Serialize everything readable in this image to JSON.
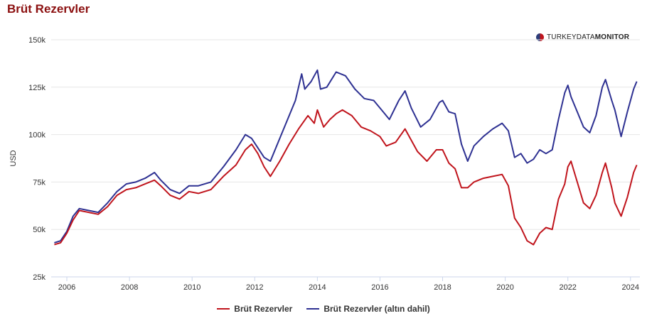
{
  "title": "Brüt Rezervler",
  "brand": {
    "part1": "TURKEYDATA",
    "part2": "MONITOR"
  },
  "chart_data": {
    "type": "line",
    "title": "Brüt Rezervler",
    "xlabel": "",
    "ylabel": "USD",
    "ylim": [
      25000,
      150000
    ],
    "xlim": [
      2005.5,
      2024.3
    ],
    "y_ticks": [
      25000,
      50000,
      75000,
      100000,
      125000,
      150000
    ],
    "y_tick_labels": [
      "25k",
      "50k",
      "75k",
      "100k",
      "125k",
      "150k"
    ],
    "x_ticks": [
      2006,
      2008,
      2010,
      2012,
      2014,
      2016,
      2018,
      2020,
      2022,
      2024
    ],
    "x_tick_labels": [
      "2006",
      "2008",
      "2010",
      "2012",
      "2014",
      "2016",
      "2018",
      "2020",
      "2022",
      "2024"
    ],
    "grid": true,
    "legend_position": "bottom",
    "series": [
      {
        "name": "Brüt Rezervler",
        "color": "#c0141c",
        "points": [
          [
            2005.6,
            42000
          ],
          [
            2005.8,
            43000
          ],
          [
            2006.0,
            48000
          ],
          [
            2006.2,
            55000
          ],
          [
            2006.4,
            60000
          ],
          [
            2006.7,
            59000
          ],
          [
            2007.0,
            58000
          ],
          [
            2007.3,
            62000
          ],
          [
            2007.6,
            68000
          ],
          [
            2007.9,
            71000
          ],
          [
            2008.2,
            72000
          ],
          [
            2008.5,
            74000
          ],
          [
            2008.8,
            76000
          ],
          [
            2009.0,
            73000
          ],
          [
            2009.3,
            68000
          ],
          [
            2009.6,
            66000
          ],
          [
            2009.9,
            70000
          ],
          [
            2010.2,
            69000
          ],
          [
            2010.6,
            71000
          ],
          [
            2011.0,
            78000
          ],
          [
            2011.4,
            84000
          ],
          [
            2011.7,
            92000
          ],
          [
            2011.9,
            95000
          ],
          [
            2012.1,
            90000
          ],
          [
            2012.3,
            83000
          ],
          [
            2012.5,
            78000
          ],
          [
            2012.8,
            86000
          ],
          [
            2013.1,
            95000
          ],
          [
            2013.4,
            103000
          ],
          [
            2013.7,
            110000
          ],
          [
            2013.9,
            106000
          ],
          [
            2014.0,
            113000
          ],
          [
            2014.2,
            104000
          ],
          [
            2014.4,
            108000
          ],
          [
            2014.6,
            111000
          ],
          [
            2014.8,
            113000
          ],
          [
            2015.1,
            110000
          ],
          [
            2015.4,
            104000
          ],
          [
            2015.7,
            102000
          ],
          [
            2016.0,
            99000
          ],
          [
            2016.2,
            94000
          ],
          [
            2016.5,
            96000
          ],
          [
            2016.8,
            103000
          ],
          [
            2017.0,
            97000
          ],
          [
            2017.2,
            91000
          ],
          [
            2017.5,
            86000
          ],
          [
            2017.8,
            92000
          ],
          [
            2018.0,
            92000
          ],
          [
            2018.2,
            85000
          ],
          [
            2018.4,
            82000
          ],
          [
            2018.6,
            72000
          ],
          [
            2018.8,
            72000
          ],
          [
            2019.0,
            75000
          ],
          [
            2019.3,
            77000
          ],
          [
            2019.6,
            78000
          ],
          [
            2019.9,
            79000
          ],
          [
            2020.1,
            73000
          ],
          [
            2020.3,
            56000
          ],
          [
            2020.5,
            51000
          ],
          [
            2020.7,
            44000
          ],
          [
            2020.9,
            42000
          ],
          [
            2021.1,
            48000
          ],
          [
            2021.3,
            51000
          ],
          [
            2021.5,
            50000
          ],
          [
            2021.7,
            66000
          ],
          [
            2021.9,
            74000
          ],
          [
            2022.0,
            83000
          ],
          [
            2022.1,
            86000
          ],
          [
            2022.3,
            75000
          ],
          [
            2022.5,
            64000
          ],
          [
            2022.7,
            61000
          ],
          [
            2022.9,
            68000
          ],
          [
            2023.1,
            80000
          ],
          [
            2023.2,
            85000
          ],
          [
            2023.4,
            72000
          ],
          [
            2023.5,
            64000
          ],
          [
            2023.7,
            57000
          ],
          [
            2023.9,
            67000
          ],
          [
            2024.1,
            80000
          ],
          [
            2024.2,
            84000
          ]
        ]
      },
      {
        "name": "Brüt Rezervler (altın dahil)",
        "color": "#2e3192",
        "points": [
          [
            2005.6,
            43000
          ],
          [
            2005.8,
            44000
          ],
          [
            2006.0,
            49000
          ],
          [
            2006.2,
            57000
          ],
          [
            2006.4,
            61000
          ],
          [
            2006.7,
            60000
          ],
          [
            2007.0,
            59000
          ],
          [
            2007.3,
            64000
          ],
          [
            2007.6,
            70000
          ],
          [
            2007.9,
            74000
          ],
          [
            2008.2,
            75000
          ],
          [
            2008.5,
            77000
          ],
          [
            2008.8,
            80000
          ],
          [
            2009.0,
            76000
          ],
          [
            2009.3,
            71000
          ],
          [
            2009.6,
            69000
          ],
          [
            2009.9,
            73000
          ],
          [
            2010.2,
            73000
          ],
          [
            2010.6,
            75000
          ],
          [
            2011.0,
            83000
          ],
          [
            2011.4,
            92000
          ],
          [
            2011.7,
            100000
          ],
          [
            2011.9,
            98000
          ],
          [
            2012.1,
            93000
          ],
          [
            2012.3,
            88000
          ],
          [
            2012.5,
            86000
          ],
          [
            2012.8,
            98000
          ],
          [
            2013.1,
            110000
          ],
          [
            2013.3,
            118000
          ],
          [
            2013.5,
            132000
          ],
          [
            2013.6,
            124000
          ],
          [
            2013.8,
            128000
          ],
          [
            2014.0,
            134000
          ],
          [
            2014.1,
            124000
          ],
          [
            2014.3,
            125000
          ],
          [
            2014.6,
            133000
          ],
          [
            2014.9,
            131000
          ],
          [
            2015.2,
            124000
          ],
          [
            2015.5,
            119000
          ],
          [
            2015.8,
            118000
          ],
          [
            2016.1,
            112000
          ],
          [
            2016.3,
            108000
          ],
          [
            2016.6,
            118000
          ],
          [
            2016.8,
            123000
          ],
          [
            2017.0,
            114000
          ],
          [
            2017.3,
            104000
          ],
          [
            2017.6,
            108000
          ],
          [
            2017.9,
            117000
          ],
          [
            2018.0,
            118000
          ],
          [
            2018.2,
            112000
          ],
          [
            2018.4,
            111000
          ],
          [
            2018.6,
            95000
          ],
          [
            2018.8,
            86000
          ],
          [
            2019.0,
            94000
          ],
          [
            2019.3,
            99000
          ],
          [
            2019.6,
            103000
          ],
          [
            2019.9,
            106000
          ],
          [
            2020.1,
            102000
          ],
          [
            2020.3,
            88000
          ],
          [
            2020.5,
            90000
          ],
          [
            2020.7,
            85000
          ],
          [
            2020.9,
            87000
          ],
          [
            2021.1,
            92000
          ],
          [
            2021.3,
            90000
          ],
          [
            2021.5,
            92000
          ],
          [
            2021.7,
            108000
          ],
          [
            2021.9,
            122000
          ],
          [
            2022.0,
            126000
          ],
          [
            2022.1,
            120000
          ],
          [
            2022.3,
            112000
          ],
          [
            2022.5,
            104000
          ],
          [
            2022.7,
            101000
          ],
          [
            2022.9,
            110000
          ],
          [
            2023.1,
            125000
          ],
          [
            2023.2,
            129000
          ],
          [
            2023.4,
            118000
          ],
          [
            2023.5,
            113000
          ],
          [
            2023.7,
            99000
          ],
          [
            2023.9,
            112000
          ],
          [
            2024.1,
            124000
          ],
          [
            2024.2,
            128000
          ]
        ]
      }
    ]
  }
}
